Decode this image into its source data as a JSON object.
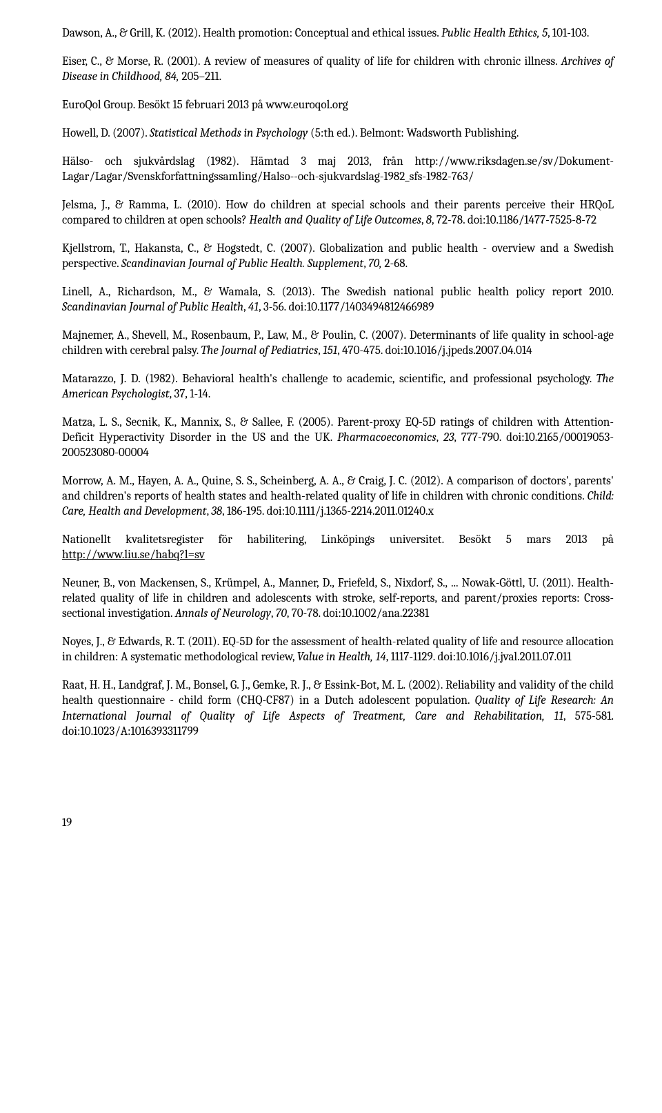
{
  "refs": [
    {
      "parts": [
        {
          "t": "Dawson, A., & Grill, K. (2012). Health promotion: Conceptual and ethical issues. "
        },
        {
          "t": "Public Health Ethics, 5",
          "i": true
        },
        {
          "t": ", 101-103."
        }
      ]
    },
    {
      "parts": [
        {
          "t": "Eiser, C., & Morse, R. (2001). A review of measures of quality of life for children with chronic illness. "
        },
        {
          "t": "Archives of Disease in Childhood, 84,",
          "i": true
        },
        {
          "t": " 205–211."
        }
      ]
    },
    {
      "parts": [
        {
          "t": "EuroQol Group. Besökt 15 februari 2013 på www.euroqol.org"
        }
      ]
    },
    {
      "parts": [
        {
          "t": "Howell, D. (2007). "
        },
        {
          "t": "Statistical Methods in Psychology",
          "i": true
        },
        {
          "t": " (5:th ed.). Belmont: Wadsworth Publishing."
        }
      ]
    },
    {
      "parts": [
        {
          "t": "Hälso- och sjukvårdslag (1982). Hämtad 3 maj 2013, från http://www.riksdagen.se/sv/Dokument-Lagar/Lagar/Svenskforfattningssamling/Halso--och-sjukvardslag-1982_sfs-1982-763/"
        }
      ]
    },
    {
      "parts": [
        {
          "t": "Jelsma, J., & Ramma, L. (2010). How do children at special schools and their parents perceive their HRQoL compared to children at open schools? "
        },
        {
          "t": "Health and Quality of Life Outcomes",
          "i": true
        },
        {
          "t": ", "
        },
        {
          "t": "8",
          "i": true
        },
        {
          "t": ", 72-78. doi:10.1186/1477-7525-8-72"
        }
      ]
    },
    {
      "parts": [
        {
          "t": "Kjellstrom, T., Hakansta, C., & Hogstedt, C. (2007). Globalization and public health - overview and a Swedish perspective. "
        },
        {
          "t": "Scandinavian Journal of Public Health. Supplement",
          "i": true
        },
        {
          "t": ", "
        },
        {
          "t": "70,",
          "i": true
        },
        {
          "t": " 2-68."
        }
      ]
    },
    {
      "parts": [
        {
          "t": "Linell, A., Richardson, M., & Wamala, S. (2013). The Swedish national public health policy report 2010. "
        },
        {
          "t": "Scandinavian Journal of Public Health",
          "i": true
        },
        {
          "t": ", "
        },
        {
          "t": "41",
          "i": true
        },
        {
          "t": ", 3-56. doi:10.1177/1403494812466989"
        }
      ]
    },
    {
      "parts": [
        {
          "t": "Majnemer, A., Shevell, M., Rosenbaum, P., Law, M., & Poulin, C. (2007). Determinants of life quality in school-age children with cerebral palsy. "
        },
        {
          "t": "The Journal of Pediatrics",
          "i": true
        },
        {
          "t": ", "
        },
        {
          "t": "151",
          "i": true
        },
        {
          "t": ", 470-475. doi:10.1016/j.jpeds.2007.04.014"
        }
      ]
    },
    {
      "parts": [
        {
          "t": "Matarazzo, J. D. (1982). Behavioral health's challenge to academic, scientific, and professional psychology. "
        },
        {
          "t": "The American Psychologist",
          "i": true
        },
        {
          "t": ", 37, 1-14."
        }
      ]
    },
    {
      "parts": [
        {
          "t": "Matza, L. S., Secnik, K., Mannix, S., & Sallee, F. (2005). Parent-proxy EQ-5D ratings of children with Attention-Deficit Hyperactivity Disorder in the US and the UK. "
        },
        {
          "t": "Pharmacoeconomics",
          "i": true
        },
        {
          "t": ", "
        },
        {
          "t": "23",
          "i": true
        },
        {
          "t": ", 777-790. doi:10.2165/00019053-200523080-00004"
        }
      ]
    },
    {
      "parts": [
        {
          "t": "Morrow, A. M., Hayen, A. A., Quine, S. S., Scheinberg, A. A., & Craig, J. C. (2012). A comparison of doctors', parents' and children's reports of health states and health-related quality of life in children with chronic conditions. "
        },
        {
          "t": "Child: Care, Health and Development",
          "i": true
        },
        {
          "t": ", "
        },
        {
          "t": "38",
          "i": true
        },
        {
          "t": ", 186-195. doi:10.1111/j.1365-2214.2011.01240.x"
        }
      ]
    },
    {
      "parts": [
        {
          "t": "Nationellt kvalitetsregister för habilitering, Linköpings universitet. Besökt 5 mars 2013 på "
        },
        {
          "t": "http://www.liu.se/habq?l=sv",
          "u": true
        }
      ]
    },
    {
      "parts": [
        {
          "t": "Neuner, B., von Mackensen, S., Krümpel, A., Manner, D., Friefeld, S., Nixdorf, S., ... Nowak-Göttl, U. (2011). Health-related quality of life in children and adolescents with stroke, self-reports, and parent/proxies reports: Cross-sectional investigation. "
        },
        {
          "t": "Annals of Neurology",
          "i": true
        },
        {
          "t": ", "
        },
        {
          "t": "70",
          "i": true
        },
        {
          "t": ", 70-78. doi:10.1002/ana.22381"
        }
      ]
    },
    {
      "parts": [
        {
          "t": "Noyes, J., & Edwards, R. T. (2011). EQ-5D for the assessment of health-related quality of life and resource allocation in children: A systematic methodological review, "
        },
        {
          "t": "Value in Health, 14",
          "i": true
        },
        {
          "t": ", 1117-1129. doi:10.1016/j.jval.2011.07.011"
        }
      ]
    },
    {
      "parts": [
        {
          "t": "Raat, H. H., Landgraf, J. M., Bonsel, G. J., Gemke, R. J., & Essink-Bot, M. L. (2002). Reliability and validity of the child health questionnaire - child form (CHQ-CF87) in a Dutch adolescent population. "
        },
        {
          "t": "Quality of Life Research: An International Journal of Quality of Life Aspects of Treatment, Care and Rehabilitation, 11",
          "i": true
        },
        {
          "t": ", 575-581. doi:10.1023/A:1016393311799"
        }
      ]
    }
  ],
  "pageNumber": "19"
}
